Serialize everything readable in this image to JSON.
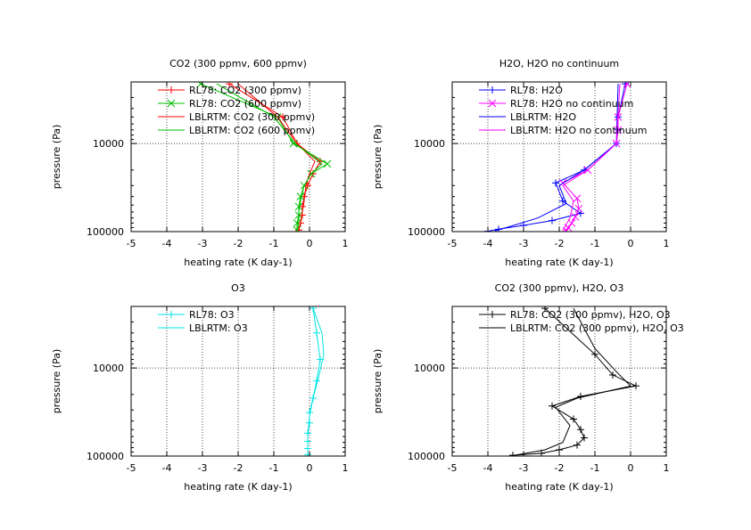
{
  "chart_data": [
    {
      "type": "line",
      "title": "CO2 (300 ppmv, 600 ppmv)",
      "xlabel": "heating rate (K day-1)",
      "ylabel": "pressure (Pa)",
      "xlim": [
        -5,
        1
      ],
      "ylim": [
        100000,
        2000
      ],
      "log_y": true,
      "grid": true,
      "legend_position": "top-left",
      "xticks": [
        "-5",
        "-4",
        "-3",
        "-2",
        "-1",
        "0",
        "1"
      ],
      "yticks": [
        "10000",
        "100000"
      ],
      "series": [
        {
          "name": "RL78: CO2 (300 ppmv)",
          "color": "#ff0000",
          "marker": "plus",
          "x": [
            -2.25,
            -0.75,
            -0.35,
            0.3,
            0.1,
            -0.05,
            -0.15,
            -0.2,
            -0.2,
            -0.25,
            -0.3
          ],
          "y": [
            2100,
            5000,
            10000,
            16000,
            22000,
            30000,
            40000,
            52000,
            65000,
            80000,
            96000
          ]
        },
        {
          "name": "RL78: CO2 (600 ppmv)",
          "color": "#00c000",
          "marker": "x",
          "x": [
            -3.05,
            -0.9,
            -0.45,
            0.5,
            0.05,
            -0.15,
            -0.25,
            -0.3,
            -0.3,
            -0.35,
            -0.35
          ],
          "y": [
            2100,
            5000,
            10000,
            17000,
            22000,
            30000,
            40000,
            52000,
            65000,
            80000,
            96000
          ]
        },
        {
          "name": "LBLRTM: CO2 (300 ppmv)",
          "color": "#ff0000",
          "marker": "none",
          "x": [
            -2.0,
            -0.9,
            -0.35,
            0.15,
            0.0,
            -0.1,
            -0.15,
            -0.2,
            -0.25,
            -0.3
          ],
          "y": [
            2100,
            5000,
            10000,
            16000,
            22000,
            30000,
            45000,
            60000,
            80000,
            96000
          ]
        },
        {
          "name": "LBLRTM: CO2 (600 ppmv)",
          "color": "#00c000",
          "marker": "none",
          "x": [
            -2.6,
            -1.0,
            -0.4,
            0.35,
            0.05,
            -0.15,
            -0.25,
            -0.3,
            -0.3,
            -0.35
          ],
          "y": [
            2100,
            5000,
            10000,
            17000,
            22000,
            30000,
            45000,
            60000,
            80000,
            96000
          ]
        }
      ]
    },
    {
      "type": "line",
      "title": "H2O, H2O no continuum",
      "xlabel": "heating rate (K day-1)",
      "ylabel": "pressure (Pa)",
      "xlim": [
        -5,
        1
      ],
      "ylim": [
        100000,
        2000
      ],
      "log_y": true,
      "grid": true,
      "legend_position": "top-left",
      "xticks": [
        "-5",
        "-4",
        "-3",
        "-2",
        "-1",
        "0",
        "1"
      ],
      "yticks": [
        "10000",
        "100000"
      ],
      "series": [
        {
          "name": "RL78: H2O",
          "color": "#0000ff",
          "marker": "plus",
          "x": [
            -0.15,
            -0.35,
            -0.35,
            -0.4,
            -1.3,
            -2.1,
            -1.9,
            -1.4,
            -2.2,
            -3.0,
            -3.7,
            -4.0
          ],
          "y": [
            2100,
            5000,
            7000,
            10000,
            20000,
            28000,
            45000,
            62000,
            75000,
            85000,
            94000,
            99000
          ]
        },
        {
          "name": "RL78: H2O no continuum",
          "color": "#ff00ff",
          "marker": "x",
          "x": [
            -0.1,
            -0.35,
            -0.35,
            -0.4,
            -1.2,
            -1.9,
            -1.5,
            -1.45,
            -1.55,
            -1.65,
            -1.75,
            -1.8
          ],
          "y": [
            2100,
            5000,
            7000,
            10000,
            20000,
            28000,
            42000,
            55000,
            68000,
            80000,
            90000,
            98000
          ]
        },
        {
          "name": "LBLRTM: H2O",
          "color": "#0000ff",
          "marker": "none",
          "x": [
            -0.35,
            -0.4,
            -1.3,
            -2.0,
            -1.8,
            -2.6,
            -3.4,
            -3.8
          ],
          "y": [
            2100,
            10000,
            20000,
            30000,
            48000,
            70000,
            88000,
            98000
          ]
        },
        {
          "name": "LBLRTM: H2O no continuum",
          "color": "#ff00ff",
          "marker": "none",
          "x": [
            -0.3,
            -0.4,
            -1.2,
            -1.9,
            -1.6,
            -1.7,
            -1.9
          ],
          "y": [
            2100,
            10000,
            20000,
            30000,
            45000,
            70000,
            98000
          ]
        }
      ]
    },
    {
      "type": "line",
      "title": "O3",
      "xlabel": "heating rate (K day-1)",
      "ylabel": "pressure (Pa)",
      "xlim": [
        -5,
        1
      ],
      "ylim": [
        100000,
        2000
      ],
      "log_y": true,
      "grid": true,
      "legend_position": "top-left",
      "xticks": [
        "-5",
        "-4",
        "-3",
        "-2",
        "-1",
        "0",
        "1"
      ],
      "yticks": [
        "10000",
        "100000"
      ],
      "series": [
        {
          "name": "RL78: O3",
          "color": "#00e5e5",
          "marker": "plus",
          "x": [
            0.1,
            0.2,
            0.3,
            0.2,
            0.1,
            0.0,
            0.0,
            -0.05,
            -0.05,
            -0.05,
            -0.05
          ],
          "y": [
            2100,
            4000,
            8000,
            14000,
            22000,
            32000,
            42000,
            55000,
            68000,
            82000,
            96000
          ]
        },
        {
          "name": "LBLRTM: O3",
          "color": "#00e5e5",
          "marker": "none",
          "x": [
            0.1,
            0.35,
            0.4,
            0.25,
            0.1,
            0.0,
            -0.05,
            -0.05
          ],
          "y": [
            2100,
            4000,
            7000,
            13000,
            22000,
            35000,
            60000,
            96000
          ]
        }
      ]
    },
    {
      "type": "line",
      "title": "CO2 (300 ppmv), H2O, O3",
      "xlabel": "heating rate (K day-1)",
      "ylabel": "pressure (Pa)",
      "xlim": [
        -5,
        1
      ],
      "ylim": [
        100000,
        2000
      ],
      "log_y": true,
      "grid": true,
      "legend_position": "top-left",
      "xticks": [
        "-5",
        "-4",
        "-3",
        "-2",
        "-1",
        "0",
        "1"
      ],
      "yticks": [
        "10000",
        "100000"
      ],
      "series": [
        {
          "name": "RL78: CO2 (300 ppmv), H2O, O3",
          "color": "#000000",
          "marker": "plus",
          "x": [
            -2.4,
            -1.0,
            -0.5,
            0.15,
            -1.4,
            -2.2,
            -1.6,
            -1.4,
            -1.3,
            -1.5,
            -2.0,
            -2.5,
            -3.3
          ],
          "y": [
            2100,
            7000,
            12000,
            16000,
            21000,
            27000,
            38000,
            50000,
            62000,
            75000,
            85000,
            93000,
            98000
          ]
        },
        {
          "name": "LBLRTM: CO2 (300 ppmv), H2O, O3",
          "color": "#000000",
          "marker": "none",
          "x": [
            -1.6,
            -1.0,
            -0.4,
            0.0,
            -1.5,
            -2.1,
            -1.7,
            -1.9,
            -2.4,
            -3.2
          ],
          "y": [
            2100,
            6000,
            11000,
            16000,
            22000,
            28000,
            45000,
            70000,
            85000,
            97000
          ]
        }
      ]
    }
  ]
}
